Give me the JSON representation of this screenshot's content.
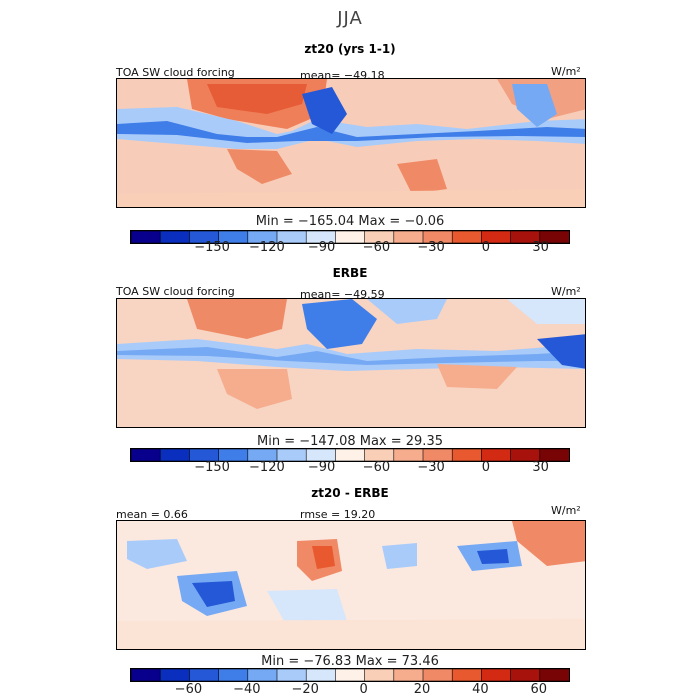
{
  "season": "JJA",
  "colorbar_colors": [
    "#08008c",
    "#0a2fbf",
    "#2458d6",
    "#3f7ee8",
    "#76a9f3",
    "#a9cbfa",
    "#d6e6fb",
    "#fdf1e8",
    "#f9cfb8",
    "#f5ad8e",
    "#f08a66",
    "#e8592f",
    "#d32a13",
    "#a8120c",
    "#780406"
  ],
  "chart_data": [
    {
      "type": "heatmap",
      "title": "zt20 (yrs 1-1)",
      "variable": "TOA SW cloud forcing",
      "stat_left": "",
      "stat_center": "mean=  −49.18",
      "units_label": "W/m²",
      "mean": -49.18,
      "min_max_text": "Min  =  −165.04  Max  =    −0.06",
      "min": -165.04,
      "max": -0.06,
      "colorbar_ticks": [
        -150,
        -120,
        -90,
        -60,
        -30,
        0,
        30
      ],
      "colorbar_tick_labels": [
        "−150",
        "−120",
        "−90",
        "−60",
        "−30",
        "0",
        "30"
      ],
      "colorbar_range": [
        -195,
        45
      ]
    },
    {
      "type": "heatmap",
      "title": "ERBE",
      "variable": "TOA SW cloud forcing",
      "stat_left": "",
      "stat_center": "mean=  −49.59",
      "units_label": "W/m²",
      "mean": -49.59,
      "min_max_text": "Min  =  −147.08  Max  =   29.35",
      "min": -147.08,
      "max": 29.35,
      "colorbar_ticks": [
        -150,
        -120,
        -90,
        -60,
        -30,
        0,
        30
      ],
      "colorbar_tick_labels": [
        "−150",
        "−120",
        "−90",
        "−60",
        "−30",
        "0",
        "30"
      ],
      "colorbar_range": [
        -195,
        45
      ]
    },
    {
      "type": "heatmap",
      "title": "zt20 - ERBE",
      "variable": "",
      "stat_left": "mean  =    0.66",
      "stat_center": "rmse  =   19.20",
      "units_label": "W/m²",
      "mean": 0.66,
      "rmse": 19.2,
      "min_max_text": "Min  =  −76.83  Max  =   73.46",
      "min": -76.83,
      "max": 73.46,
      "colorbar_ticks": [
        -60,
        -40,
        -20,
        0,
        20,
        40,
        60
      ],
      "colorbar_tick_labels": [
        "−60",
        "−40",
        "−20",
        "0",
        "20",
        "40",
        "60"
      ],
      "colorbar_range": [
        -80,
        70
      ]
    }
  ]
}
